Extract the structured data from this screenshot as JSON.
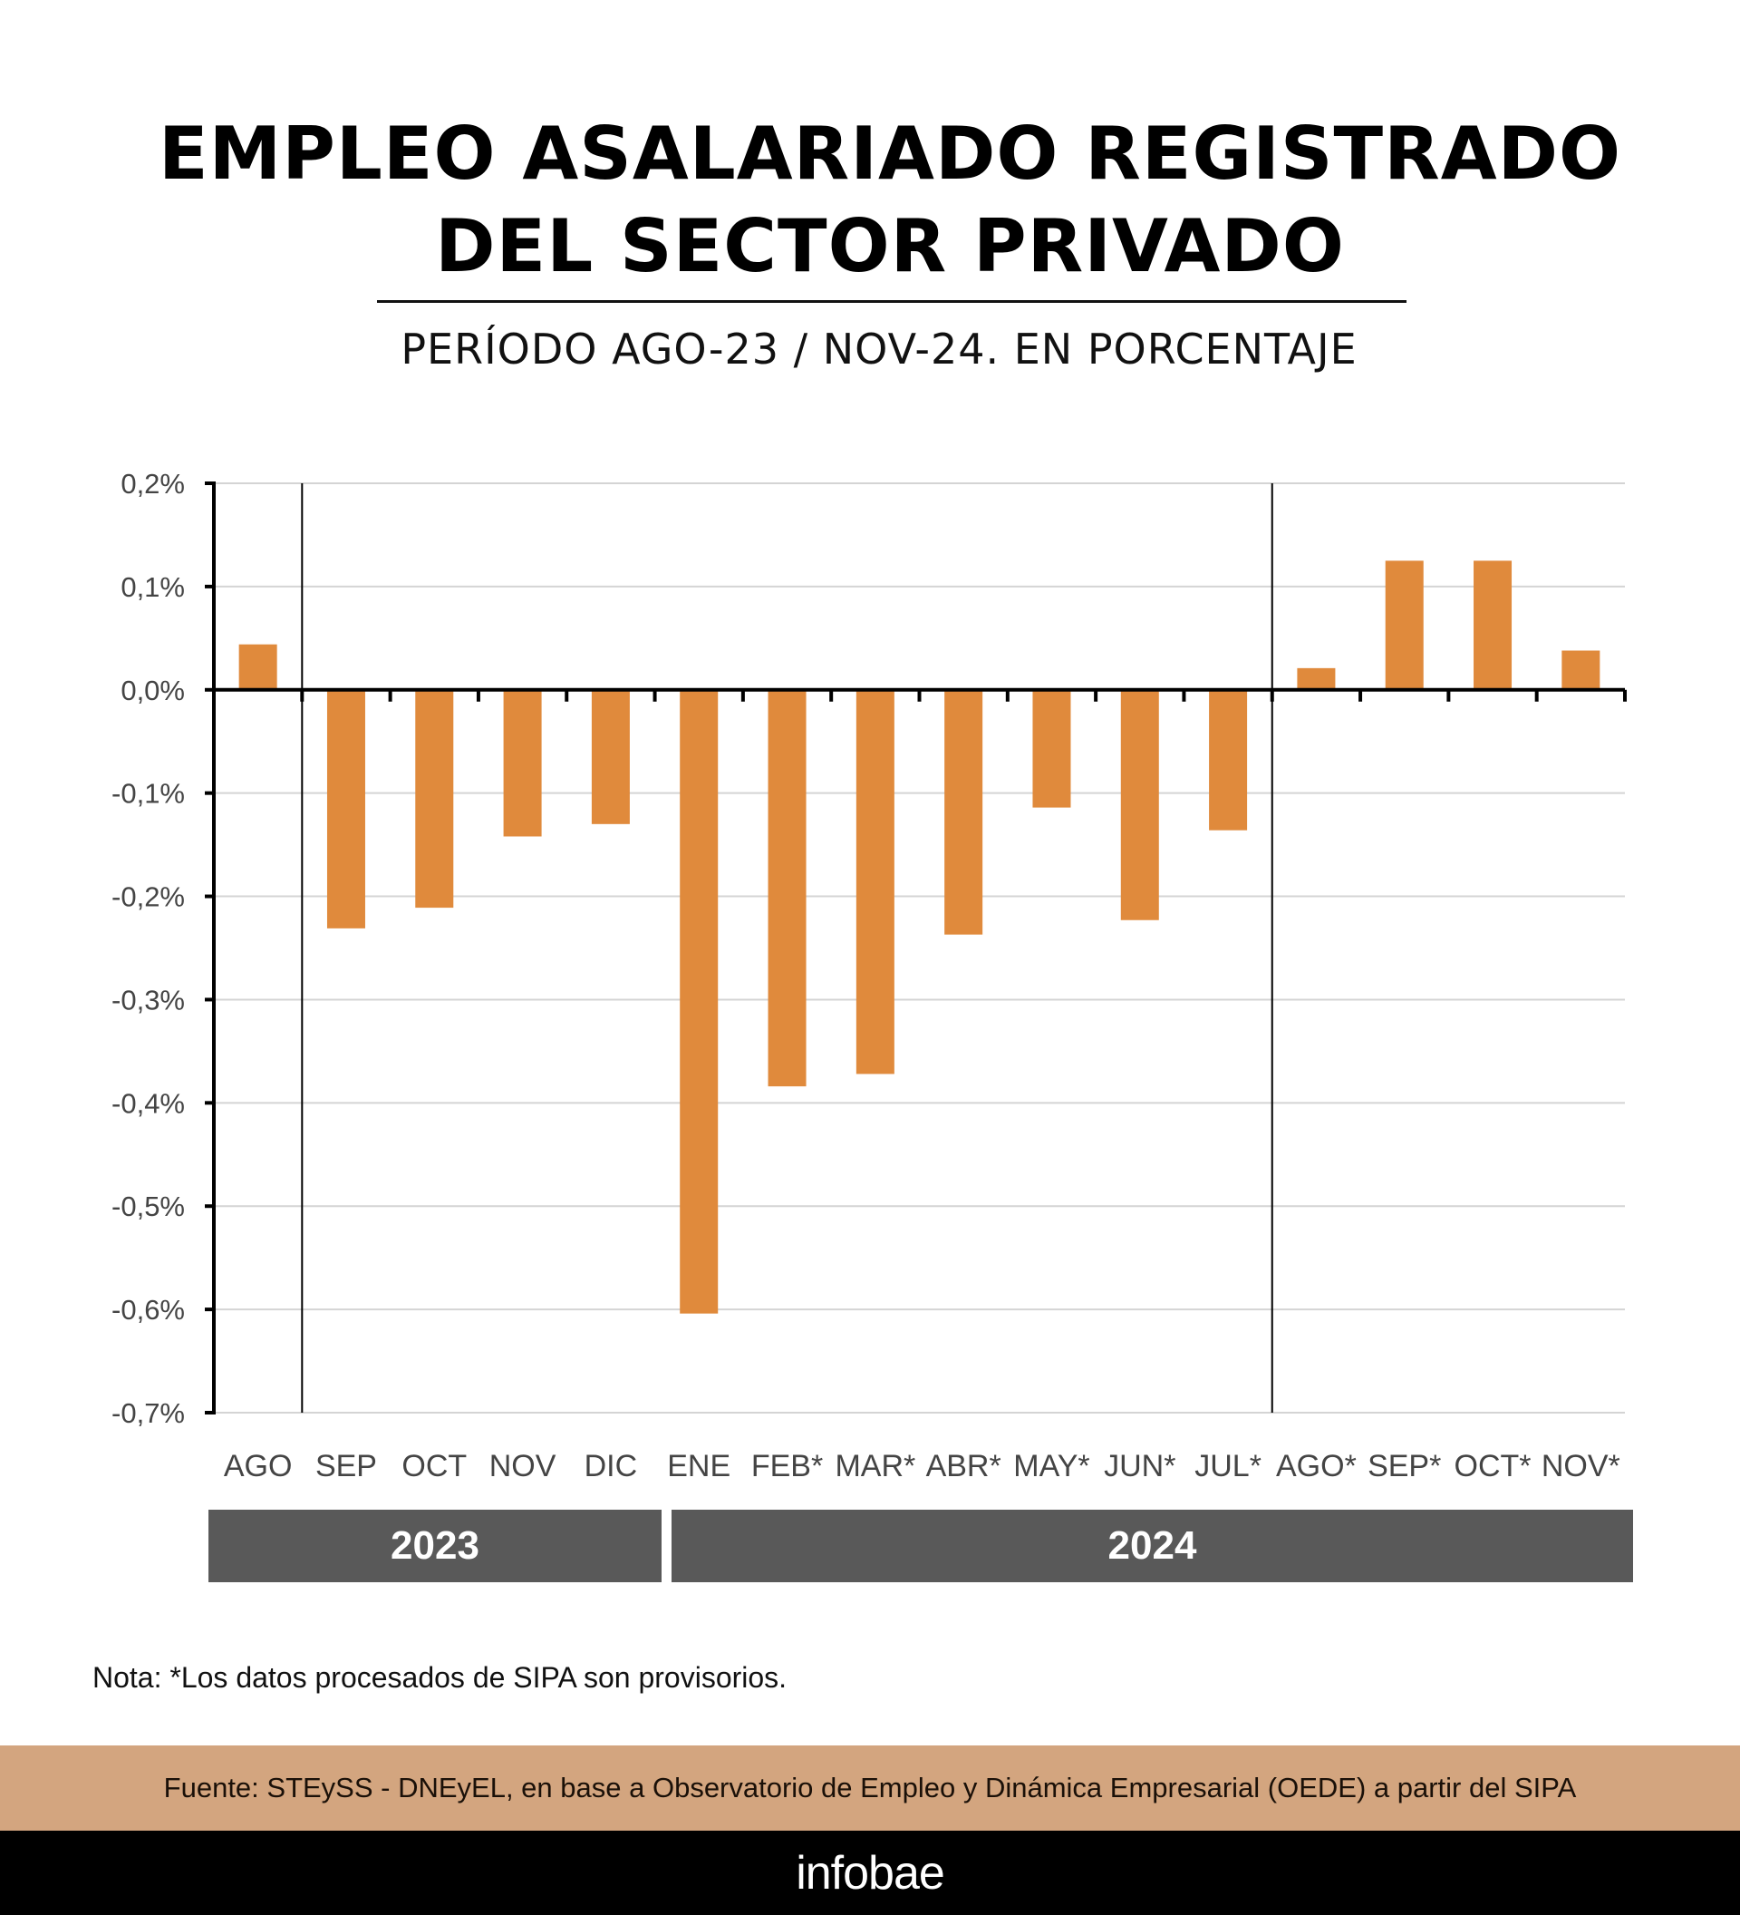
{
  "header": {
    "title_line1": "EMPLEO ASALARIADO REGISTRADO",
    "title_line2": "DEL SECTOR PRIVADO",
    "subtitle": "PERÍODO AGO-23 / NOV-24. EN PORCENTAJE"
  },
  "chart_data": {
    "type": "bar",
    "title": "EMPLEO ASALARIADO REGISTRADO DEL SECTOR PRIVADO",
    "subtitle": "PERÍODO AGO-23 / NOV-24. EN PORCENTAJE",
    "xlabel": "",
    "ylabel": "",
    "ylim": [
      -0.7,
      0.2
    ],
    "yticks": [
      0.2,
      0.1,
      0.0,
      -0.1,
      -0.2,
      -0.3,
      -0.4,
      -0.5,
      -0.6,
      -0.7
    ],
    "ytick_labels": [
      "0,2%",
      "0,1%",
      "0,0%",
      "-0,1%",
      "-0,2%",
      "-0,3%",
      "-0,4%",
      "-0,5%",
      "-0,6%",
      "-0,7%"
    ],
    "grid": true,
    "categories": [
      "AGO",
      "SEP",
      "OCT",
      "NOV",
      "DIC",
      "ENE",
      "FEB*",
      "MAR*",
      "ABR*",
      "MAY*",
      "JUN*",
      "JUL*",
      "AGO*",
      "SEP*",
      "OCT*",
      "NOV*"
    ],
    "values": [
      0.044,
      -0.231,
      -0.211,
      -0.142,
      -0.13,
      -0.604,
      -0.384,
      -0.372,
      -0.237,
      -0.114,
      -0.223,
      -0.136,
      0.021,
      0.125,
      0.125,
      0.038
    ],
    "groups": [
      {
        "label": "2023",
        "categories": [
          "AGO",
          "SEP",
          "OCT",
          "NOV",
          "DIC"
        ]
      },
      {
        "label": "2024",
        "categories": [
          "ENE",
          "FEB*",
          "MAR*",
          "ABR*",
          "MAY*",
          "JUN*",
          "JUL*",
          "AGO*",
          "SEP*",
          "OCT*",
          "NOV*"
        ]
      }
    ],
    "vertical_separators_after": [
      "AGO",
      "JUL*"
    ],
    "bar_color": "#e08a3c"
  },
  "years": {
    "y2023": "2023",
    "y2024": "2024"
  },
  "footer": {
    "note": "Nota: *Los datos procesados de SIPA son provisorios.",
    "source": "Fuente: STEySS - DNEyEL, en base a Observatorio de Empleo y Dinámica Empresarial (OEDE) a partir del SIPA",
    "brand": "infobae"
  },
  "colors": {
    "bar": "#e08a3c",
    "year_band": "#595959",
    "source_band": "#d3a57f",
    "brand_band": "#000000"
  }
}
